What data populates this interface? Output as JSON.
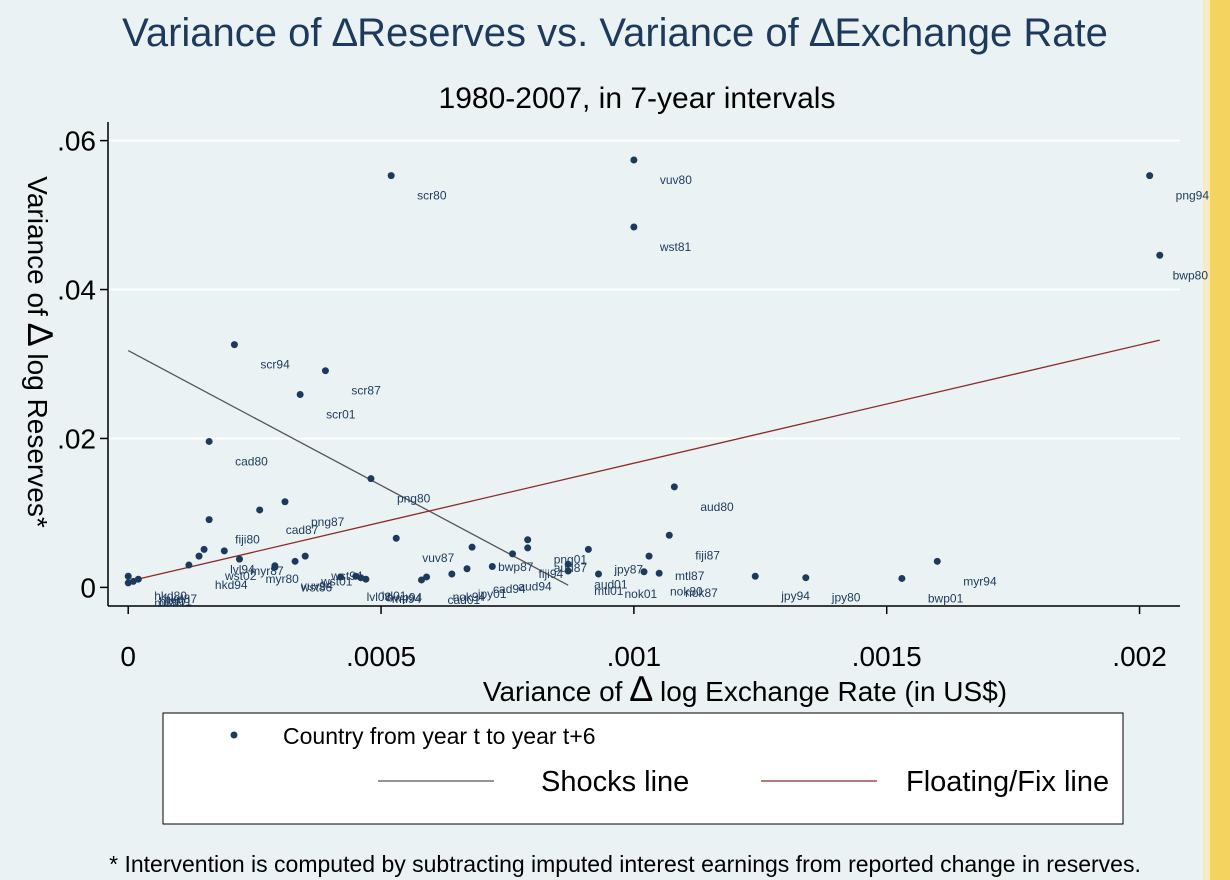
{
  "chart_data": {
    "type": "scatter",
    "title": "Variance of ∆Reserves vs. Variance of ∆Exchange Rate",
    "subtitle": "1980-2007, in 7-year intervals",
    "xlabel_prefix": "Variance of ",
    "xlabel_delta": "∆",
    "xlabel_suffix": " log Exchange Rate (in US$)",
    "ylabel_prefix": "Variance of ",
    "ylabel_delta": "∆",
    "ylabel_suffix": " log Reserves*",
    "xlim": [
      -4e-05,
      0.00208
    ],
    "ylim": [
      -0.0025,
      0.0625
    ],
    "xticks": [
      0,
      0.0005,
      0.001,
      0.0015,
      0.002
    ],
    "xtick_labels": [
      "0",
      ".0005",
      ".001",
      ".0015",
      ".002"
    ],
    "yticks": [
      0,
      0.02,
      0.04,
      0.06
    ],
    "ytick_labels": [
      "0",
      ".02",
      ".04",
      ".06"
    ],
    "grid": true,
    "colors": {
      "points": "#1d3a5c",
      "shocks": "#555555",
      "floating": "#8b2a2a",
      "grid": "#ffffff"
    },
    "points": [
      {
        "x": 0.00052,
        "y": 0.0553,
        "label": "scr80"
      },
      {
        "x": 0.001,
        "y": 0.0574,
        "label": "vuv80"
      },
      {
        "x": 0.001,
        "y": 0.0484,
        "label": "wst81"
      },
      {
        "x": 0.00202,
        "y": 0.0553,
        "label": "png94"
      },
      {
        "x": 0.00204,
        "y": 0.0446,
        "label": "bwp80"
      },
      {
        "x": 0.00021,
        "y": 0.0326,
        "label": "scr94"
      },
      {
        "x": 0.00039,
        "y": 0.0291,
        "label": "scr87"
      },
      {
        "x": 0.00034,
        "y": 0.0259,
        "label": "scr01"
      },
      {
        "x": 0.00016,
        "y": 0.0196,
        "label": "cad80"
      },
      {
        "x": 0.00048,
        "y": 0.0146,
        "label": "png80"
      },
      {
        "x": 0.00108,
        "y": 0.0135,
        "label": "aud80"
      },
      {
        "x": 0.00026,
        "y": 0.0104,
        "label": "cad87"
      },
      {
        "x": 0.00031,
        "y": 0.0115,
        "label": "png87"
      },
      {
        "x": 0.00016,
        "y": 0.0091,
        "label": "fiji80"
      },
      {
        "x": 0.00107,
        "y": 0.007,
        "label": "fiji87"
      },
      {
        "x": 0.00053,
        "y": 0.0066,
        "label": "vuv87"
      },
      {
        "x": 0.00079,
        "y": 0.0064,
        "label": "png01"
      },
      {
        "x": 0.00059,
        "y": 0.0014,
        "label": "nok94"
      },
      {
        "x": 0.00072,
        "y": 0.0028,
        "label": "aud94"
      },
      {
        "x": 0.00087,
        "y": 0.0031,
        "label": "aud01"
      },
      {
        "x": 0.00079,
        "y": 0.0053,
        "label": "aud87"
      },
      {
        "x": 0.00093,
        "y": 0.0018,
        "label": "nok01"
      },
      {
        "x": 0.00102,
        "y": 0.0021,
        "label": "nok80"
      },
      {
        "x": 0.00105,
        "y": 0.0019,
        "label": "nok87"
      },
      {
        "x": 0.0016,
        "y": 0.0035,
        "label": "myr94"
      },
      {
        "x": 0.00153,
        "y": 0.0012,
        "label": "bwp01"
      },
      {
        "x": 0.00134,
        "y": 0.0013,
        "label": "jpy80"
      },
      {
        "x": 0.00124,
        "y": 0.0015,
        "label": "jpy94"
      },
      {
        "x": 0.00103,
        "y": 0.0042,
        "label": "mtl87"
      },
      {
        "x": 0.00091,
        "y": 0.0051,
        "label": "jpy87"
      },
      {
        "x": 0.00076,
        "y": 0.0045,
        "label": "fiji94"
      },
      {
        "x": 0.00068,
        "y": 0.0054,
        "label": "bwp87"
      },
      {
        "x": 0.00064,
        "y": 0.0018,
        "label": "jpy01"
      },
      {
        "x": 0.00058,
        "y": 0.001,
        "label": "cad01"
      },
      {
        "x": 0.00046,
        "y": 0.0013,
        "label": "bwp94"
      },
      {
        "x": 0.00045,
        "y": 0.0015,
        "label": "lvl01"
      },
      {
        "x": 0.00035,
        "y": 0.0042,
        "label": "wst94"
      },
      {
        "x": 0.00042,
        "y": 0.0014,
        "label": "lvl08"
      },
      {
        "x": 0.00033,
        "y": 0.0035,
        "label": "wst01"
      },
      {
        "x": 0.00029,
        "y": 0.0029,
        "label": "vuv94"
      },
      {
        "x": 0.00022,
        "y": 0.0038,
        "label": "myr80"
      },
      {
        "x": 0.00019,
        "y": 0.0049,
        "label": "myr87"
      },
      {
        "x": 0.00015,
        "y": 0.0051,
        "label": "lvl94"
      },
      {
        "x": 0.00014,
        "y": 0.0042,
        "label": "wst02"
      },
      {
        "x": 0.00012,
        "y": 0.003,
        "label": "hkd94"
      },
      {
        "x": 1e-05,
        "y": 0.0008,
        "label": "hkd01"
      },
      {
        "x": 2e-05,
        "y": 0.0011,
        "label": "hkd87"
      },
      {
        "x": 0.0,
        "y": 0.0015,
        "label": "hkd80"
      },
      {
        "x": 0.0,
        "y": 0.0006,
        "label": "mtl80"
      },
      {
        "x": 0.00029,
        "y": 0.0027,
        "label": "wst86"
      },
      {
        "x": 0.00047,
        "y": 0.0011,
        "label": "mtl94"
      },
      {
        "x": 0.00067,
        "y": 0.0025,
        "label": "cad94"
      },
      {
        "x": 0.00087,
        "y": 0.0022,
        "label": "mtl01"
      }
    ],
    "shocks_line": [
      [
        0.0,
        0.0318
      ],
      [
        0.00087,
        0.0003
      ]
    ],
    "floating_line": [
      [
        0.0,
        0.0008
      ],
      [
        0.00204,
        0.0332
      ]
    ],
    "legend": {
      "placement": "bottom",
      "points": "Country from year t to year t+6",
      "shocks": "Shocks line",
      "floating": "Floating/Fix line"
    },
    "footnote": "* Intervention is computed by subtracting imputed interest earnings from reported change in reserves."
  }
}
